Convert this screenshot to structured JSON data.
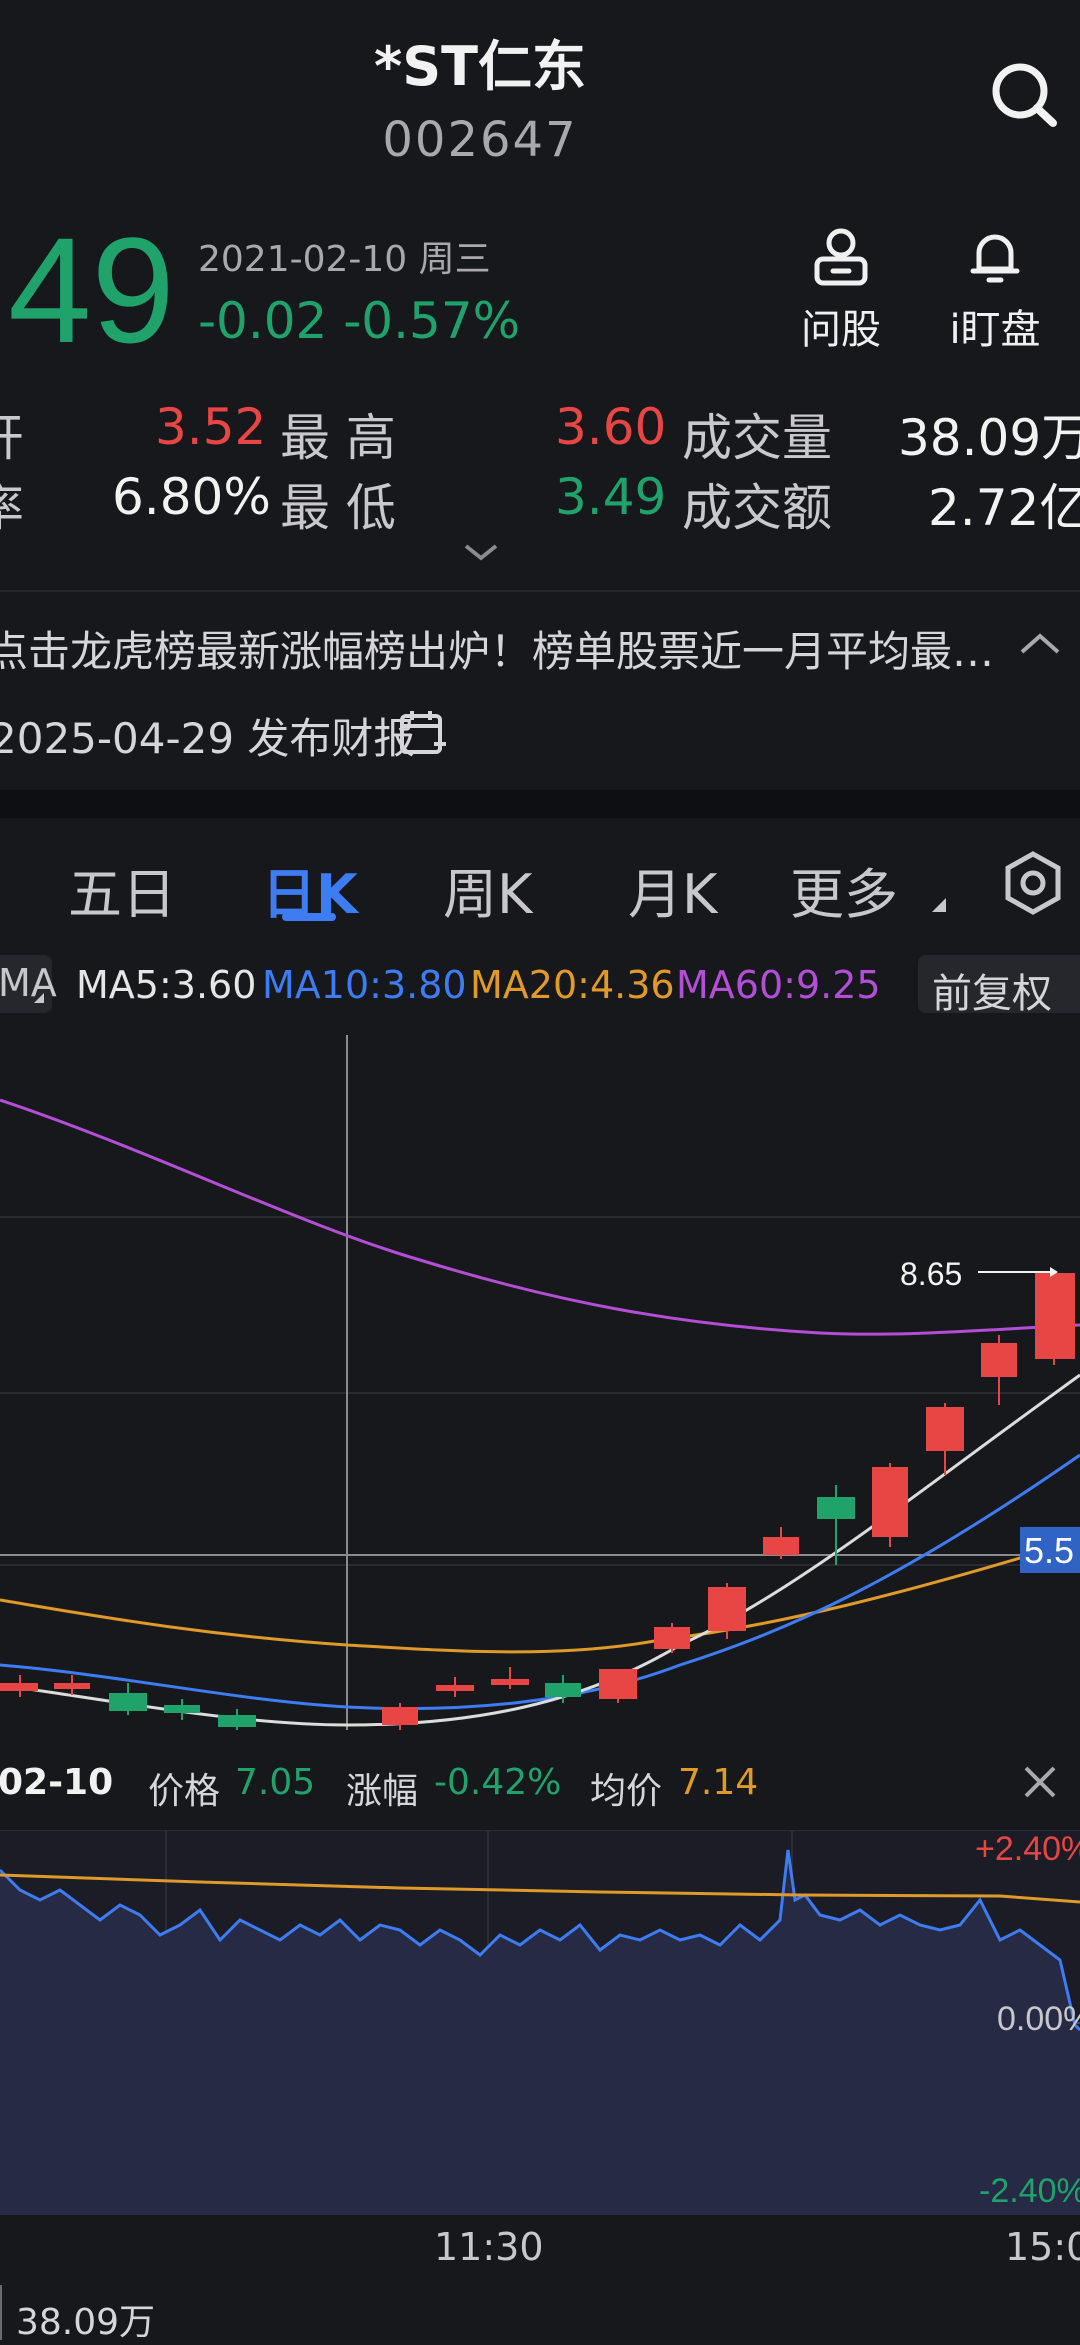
{
  "header": {
    "stock_name": "*ST仁东",
    "stock_code": "002647"
  },
  "quote": {
    "price_partial": "49",
    "date": "2021-02-10 周三",
    "change": "-0.02 -0.57%",
    "tools": [
      {
        "label": "问股",
        "icon": "user-question-icon"
      },
      {
        "label": "i盯盘",
        "icon": "bell-icon"
      }
    ],
    "stats": {
      "open_edge": "开",
      "open_value": "3.52",
      "high_label": "最 高",
      "high_value": "3.60",
      "volume_label": "成交量",
      "volume_value": "38.09万",
      "turnover_edge": "率",
      "turnover_value": "6.80%",
      "low_label": "最 低",
      "low_value": "3.49",
      "amount_label": "成交额",
      "amount_value": "2.72亿"
    }
  },
  "news": {
    "headline": "点击龙虎榜最新涨幅榜出炉！榜单股票近一月平均最…",
    "report": "2025-04-29 发布财报"
  },
  "tabs": [
    {
      "label": "五日",
      "active": false
    },
    {
      "label": "日K",
      "active": true
    },
    {
      "label": "周K",
      "active": false
    },
    {
      "label": "月K",
      "active": false
    },
    {
      "label": "更多",
      "active": false
    }
  ],
  "ma": {
    "selector": "MA",
    "ma5": "MA5:3.60",
    "ma10": "MA10:3.80",
    "ma20": "MA20:4.36",
    "ma60": "MA60:9.25",
    "adjust": "前复权",
    "colors": {
      "ma5": "#e6e6e6",
      "ma10": "#3d7cf2",
      "ma20": "#e09a2a",
      "ma60": "#b34fd6"
    }
  },
  "kline": {
    "max_label": "8.65",
    "crosshair_price": "5.5"
  },
  "intraday_info": {
    "date": "02-10",
    "price_label": "价格",
    "price_value": "7.05",
    "change_label": "涨幅",
    "change_value": "-0.42%",
    "avg_label": "均价",
    "avg_value": "7.14"
  },
  "intraday": {
    "upper": "+2.40%",
    "zero": "0.00%",
    "lower": "-2.40%",
    "time_mid": "11:30",
    "time_end": "15:0",
    "volume": "38.09万"
  }
}
